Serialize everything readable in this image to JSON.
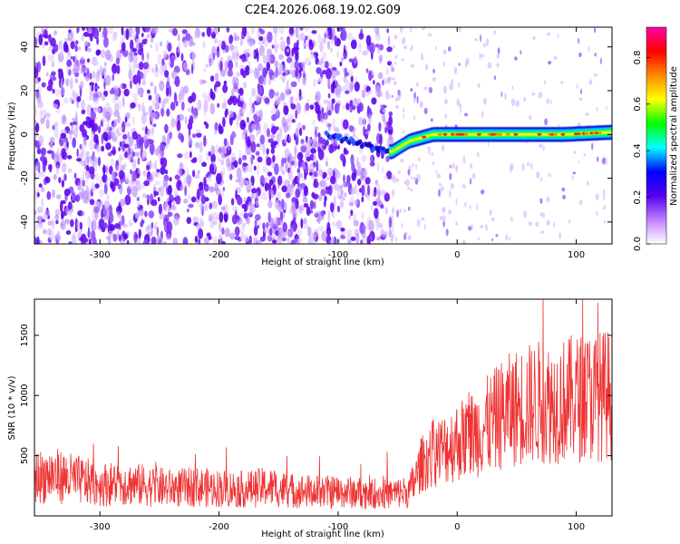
{
  "title": "C2E4.2026.068.19.02.G09",
  "chart_data": [
    {
      "type": "heatmap",
      "name": "spectrogram",
      "xlabel": "Height of straight line (km)",
      "ylabel": "Frequency (Hz)",
      "xlim": [
        -355,
        130
      ],
      "ylim": [
        -50,
        49
      ],
      "x_ticks": [
        -300,
        -200,
        -100,
        0,
        100
      ],
      "y_ticks": [
        -40,
        -20,
        0,
        20,
        40
      ],
      "colorbar": {
        "label": "Normalized spectral amplitude",
        "range": [
          0.0,
          0.93
        ],
        "ticks": [
          0.0,
          0.2,
          0.4,
          0.6,
          0.8
        ],
        "colormap": [
          "#ffffff",
          "#c080ff",
          "#5500ee",
          "#0000ff",
          "#00ffff",
          "#00ff00",
          "#ffff00",
          "#ff8800",
          "#ff0000",
          "#ff00aa"
        ]
      },
      "features": {
        "noise_region_x": [
          -355,
          -55
        ],
        "sparse_region_x": [
          -55,
          130
        ],
        "signal_track": {
          "x": [
            -110,
            -90,
            -70,
            -55,
            -40,
            -20,
            0,
            30,
            60,
            90,
            130
          ],
          "frequency": [
            0,
            -3,
            -6,
            -8,
            -3,
            0,
            0,
            0,
            0,
            0,
            1
          ]
        }
      }
    },
    {
      "type": "line",
      "name": "snr",
      "xlabel": "Height of straight line (km)",
      "ylabel": "SNR (10 * v/v)",
      "xlim": [
        -355,
        130
      ],
      "ylim": [
        0,
        1800
      ],
      "x_ticks": [
        -300,
        -200,
        -100,
        0,
        100
      ],
      "y_ticks": [
        500,
        1000,
        1500
      ],
      "series": [
        {
          "name": "SNR",
          "color": "#ee3333",
          "x": [
            -355,
            -340,
            -320,
            -300,
            -280,
            -260,
            -240,
            -220,
            -200,
            -180,
            -160,
            -140,
            -120,
            -100,
            -80,
            -60,
            -40,
            -30,
            -20,
            -10,
            0,
            10,
            20,
            30,
            40,
            50,
            60,
            70,
            80,
            90,
            100,
            110,
            120,
            130
          ],
          "y": [
            320,
            340,
            300,
            260,
            270,
            250,
            230,
            240,
            230,
            220,
            240,
            210,
            200,
            200,
            190,
            180,
            200,
            430,
            520,
            560,
            620,
            660,
            720,
            780,
            860,
            900,
            930,
            950,
            940,
            960,
            980,
            990,
            1000,
            1010
          ]
        }
      ]
    }
  ]
}
